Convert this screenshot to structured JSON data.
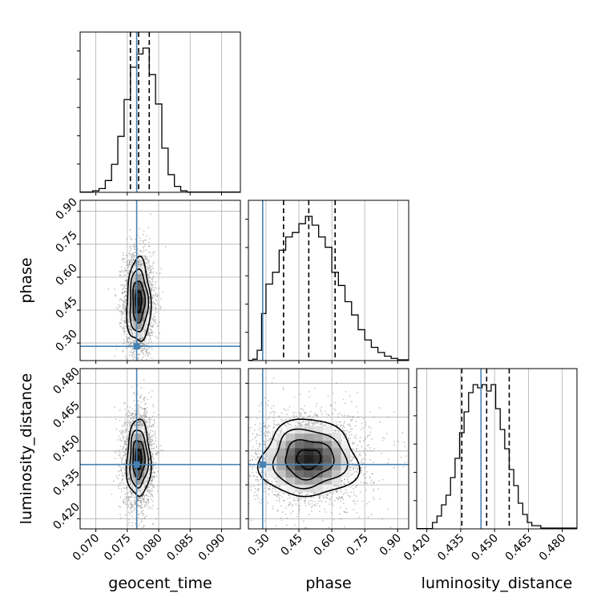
{
  "chart_data": {
    "type": "corner",
    "parameters": [
      {
        "name": "geocent_time",
        "label": "geocent_time",
        "range": [
          0.0675,
          0.093
        ],
        "ticks": [
          0.07,
          0.075,
          0.08,
          0.085,
          0.09
        ],
        "tick_labels": [
          "0.070",
          "0.075",
          "0.080",
          "0.085",
          "0.090"
        ],
        "truth": 0.0765,
        "quantiles": [
          0.0755,
          0.0768,
          0.0785
        ]
      },
      {
        "name": "phase",
        "label": "phase",
        "range": [
          0.22,
          0.95
        ],
        "ticks": [
          0.3,
          0.45,
          0.6,
          0.75,
          0.9
        ],
        "tick_labels": [
          "0.30",
          "0.45",
          "0.60",
          "0.75",
          "0.90"
        ],
        "truth": 0.285,
        "quantiles": [
          0.38,
          0.495,
          0.615
        ]
      },
      {
        "name": "luminosity_distance",
        "label": "luminosity_distance",
        "range": [
          0.4155,
          0.4865
        ],
        "ticks": [
          0.42,
          0.435,
          0.45,
          0.465,
          0.48
        ],
        "tick_labels": [
          "0.420",
          "0.435",
          "0.450",
          "0.465",
          "0.480"
        ],
        "truth": 0.444,
        "quantiles": [
          0.4355,
          0.4465,
          0.4565
        ]
      }
    ],
    "histograms": [
      {
        "param": "geocent_time",
        "bins": [
          0.0675,
          0.0695,
          0.0705,
          0.0715,
          0.0725,
          0.0735,
          0.0745,
          0.0755,
          0.0765,
          0.0775,
          0.0785,
          0.0795,
          0.0805,
          0.0815,
          0.0825,
          0.0835,
          0.0845,
          0.093
        ],
        "counts": [
          0.002,
          0.01,
          0.025,
          0.08,
          0.19,
          0.38,
          0.63,
          0.85,
          0.94,
          0.98,
          0.8,
          0.6,
          0.3,
          0.12,
          0.04,
          0.01,
          0.002
        ]
      },
      {
        "param": "phase",
        "bins": [
          0.22,
          0.24,
          0.26,
          0.28,
          0.3,
          0.33,
          0.36,
          0.39,
          0.42,
          0.45,
          0.48,
          0.51,
          0.54,
          0.57,
          0.6,
          0.63,
          0.66,
          0.69,
          0.72,
          0.75,
          0.78,
          0.81,
          0.84,
          0.87,
          0.9,
          0.95
        ],
        "counts": [
          0.002,
          0.01,
          0.07,
          0.32,
          0.52,
          0.6,
          0.75,
          0.84,
          0.87,
          0.93,
          0.98,
          0.92,
          0.84,
          0.77,
          0.6,
          0.51,
          0.4,
          0.31,
          0.21,
          0.14,
          0.09,
          0.055,
          0.03,
          0.015,
          0.005
        ]
      },
      {
        "param": "luminosity_distance",
        "bins": [
          0.4155,
          0.4225,
          0.4245,
          0.4265,
          0.4285,
          0.4305,
          0.4325,
          0.4345,
          0.4365,
          0.4385,
          0.4405,
          0.4425,
          0.4445,
          0.4465,
          0.4485,
          0.4505,
          0.4525,
          0.4545,
          0.4565,
          0.4585,
          0.4605,
          0.4625,
          0.4645,
          0.4665,
          0.4705,
          0.4865
        ],
        "counts": [
          0.002,
          0.04,
          0.08,
          0.15,
          0.21,
          0.32,
          0.44,
          0.6,
          0.73,
          0.85,
          0.9,
          0.88,
          0.9,
          0.86,
          0.9,
          0.75,
          0.62,
          0.5,
          0.37,
          0.27,
          0.16,
          0.09,
          0.04,
          0.02,
          0.005
        ]
      }
    ],
    "joint_panels": [
      {
        "x": "geocent_time",
        "y": "phase",
        "center": [
          0.0768,
          0.49
        ],
        "spread": [
          0.00095,
          0.095
        ],
        "skew": [
          0.0004,
          -0.01
        ]
      },
      {
        "x": "geocent_time",
        "y": "luminosity_distance",
        "center": [
          0.0768,
          0.4465
        ],
        "spread": [
          0.00095,
          0.0085
        ],
        "skew": [
          0,
          0
        ]
      },
      {
        "x": "phase",
        "y": "luminosity_distance",
        "center": [
          0.495,
          0.4465
        ],
        "spread": [
          0.11,
          0.0085
        ],
        "skew": [
          0,
          0
        ]
      }
    ],
    "contour_levels": 4,
    "grid": true,
    "truth_color": "#4682b4",
    "quantile_style": "dashed",
    "title": "",
    "xlabel": "",
    "ylabel": ""
  }
}
